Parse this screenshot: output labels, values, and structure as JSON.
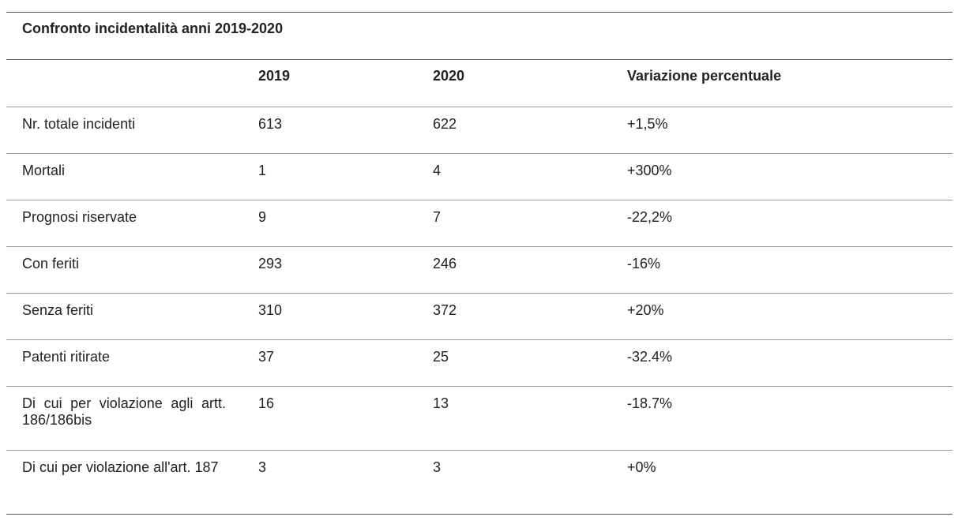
{
  "table": {
    "title": "Confronto incidentalità anni 2019-2020",
    "headers": [
      "",
      "2019",
      "2020",
      "Variazione percentuale"
    ],
    "rows": [
      {
        "label": "Nr. totale incidenti",
        "y2019": "613",
        "y2020": "622",
        "change": "+1,5%"
      },
      {
        "label": "Mortali",
        "y2019": "1",
        "y2020": "4",
        "change": "+300%"
      },
      {
        "label": "Prognosi riservate",
        "y2019": "9",
        "y2020": "7",
        "change": "-22,2%"
      },
      {
        "label": "Con feriti",
        "y2019": "293",
        "y2020": "246",
        "change": "-16%"
      },
      {
        "label": "Senza feriti",
        "y2019": "310",
        "y2020": "372",
        "change": "+20%"
      },
      {
        "label": "Patenti ritirate",
        "y2019": "37",
        "y2020": "25",
        "change": "-32.4%"
      },
      {
        "label": "Di cui per violazione agli artt. 186/186bis",
        "y2019": "16",
        "y2020": "13",
        "change": "-18.7%"
      },
      {
        "label": "Di cui per violazione all'art. 187",
        "y2019": "3",
        "y2020": "3",
        "change": "+0%"
      }
    ]
  }
}
